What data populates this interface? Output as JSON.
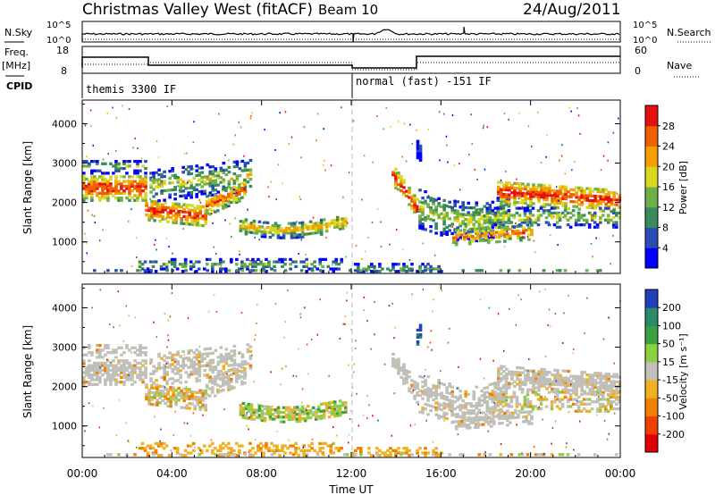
{
  "header": {
    "station": "Christmas Valley West (fitACF)",
    "beam": "Beam 10",
    "date": "24/Aug/2011"
  },
  "panels": {
    "nsky": {
      "left_label": "N.Sky",
      "right_label": "N.Search",
      "left_ticks": [
        "10^5",
        "10^0"
      ],
      "right_ticks": [
        "10^5",
        "10^0"
      ]
    },
    "freq": {
      "left_label_1": "Freq.",
      "left_label_2": "[MHz]",
      "right_label": "Nave",
      "left_ticks": [
        "18",
        "8"
      ],
      "right_ticks": [
        "60",
        "0"
      ]
    },
    "cpid": {
      "label": "CPID",
      "segments": [
        "themis 3300 IF",
        "normal (fast) -151 IF"
      ]
    }
  },
  "chart_data": [
    {
      "type": "heatmap",
      "name": "power",
      "ylabel": "Slant Range [km]",
      "xlabel": "",
      "xlim": [
        0,
        24
      ],
      "ylim": [
        200,
        4600
      ],
      "yticks": [
        "1000",
        "2000",
        "3000",
        "4000"
      ],
      "xticks": [
        "00:00",
        "04:00",
        "08:00",
        "12:00",
        "16:00",
        "20:00",
        "00:00"
      ],
      "colorbar": {
        "label": "Power [dB]",
        "ticks": [
          "4",
          "8",
          "12",
          "16",
          "20",
          "24",
          "28"
        ],
        "colors": [
          "#0000ff",
          "#2a4db4",
          "#3a8a5a",
          "#6fb04a",
          "#d8d820",
          "#f5a000",
          "#f06000",
          "#e51010"
        ]
      }
    },
    {
      "type": "heatmap",
      "name": "velocity",
      "ylabel": "Slant Range [km]",
      "xlabel": "Time UT",
      "xlim": [
        0,
        24
      ],
      "ylim": [
        200,
        4600
      ],
      "yticks": [
        "1000",
        "2000",
        "3000",
        "4000"
      ],
      "xticks": [
        "00:00",
        "04:00",
        "08:00",
        "12:00",
        "16:00",
        "20:00",
        "00:00"
      ],
      "colorbar": {
        "label": "Velocity [m s⁻¹]",
        "ticks": [
          "200",
          "100",
          "50",
          "15",
          "-15",
          "-50",
          "-100",
          "-200"
        ],
        "colors": [
          "#2040c0",
          "#2a8a6a",
          "#3aa040",
          "#8ad040",
          "#c0c0b8",
          "#f0b020",
          "#f08000",
          "#f04000",
          "#e00000"
        ]
      }
    }
  ],
  "colors": {
    "ground_scatter": "#c0c0b8",
    "axis": "#000000"
  }
}
